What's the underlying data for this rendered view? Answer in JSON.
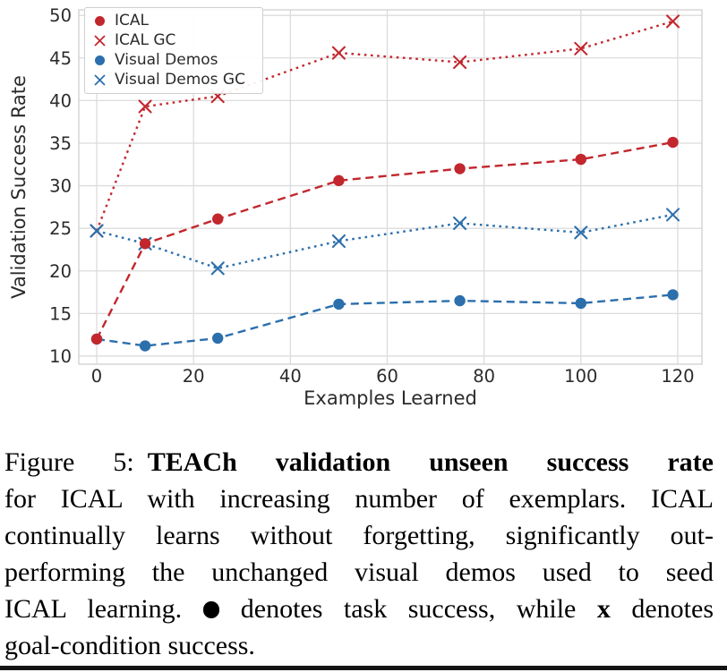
{
  "chart_data": {
    "type": "line",
    "title": "",
    "xlabel": "Examples Learned",
    "ylabel": "Validation Success Rate",
    "x_ticks": [
      0,
      20,
      40,
      60,
      80,
      100,
      120
    ],
    "y_ticks": [
      10,
      15,
      20,
      25,
      30,
      35,
      40,
      45,
      50
    ],
    "xlim": [
      -3.7,
      125
    ],
    "ylim": [
      9.05,
      50.65
    ],
    "grid": true,
    "legend_position": "upper left",
    "x": [
      0,
      10,
      25,
      50,
      75,
      100,
      119
    ],
    "series": [
      {
        "name": "ICAL",
        "color": "#c2272d",
        "marker": "circle",
        "linestyle": "dashed",
        "values": [
          12.0,
          23.2,
          26.1,
          30.6,
          32.0,
          33.1,
          35.1
        ]
      },
      {
        "name": "ICAL GC",
        "color": "#c2272d",
        "marker": "x",
        "linestyle": "dotted",
        "values": [
          24.7,
          39.3,
          40.5,
          45.6,
          44.5,
          46.1,
          49.3
        ]
      },
      {
        "name": "Visual Demos",
        "color": "#2b6fac",
        "marker": "circle",
        "linestyle": "dashed",
        "values": [
          12.0,
          11.2,
          12.1,
          16.1,
          16.5,
          16.2,
          17.2
        ]
      },
      {
        "name": "Visual Demos GC",
        "color": "#2b6fac",
        "marker": "x",
        "linestyle": "dotted",
        "values": [
          24.7,
          23.2,
          20.3,
          23.5,
          25.6,
          24.5,
          26.6
        ]
      }
    ],
    "style": {
      "grid_color": "#dcdcdc",
      "spine_color": "#d2d2d2",
      "tick_label_color": "#2b2b2b"
    }
  },
  "caption": {
    "lines": [
      [
        {
          "t": "Figure 5: ",
          "b": false
        },
        {
          "t": "TEACh validation unseen success rate",
          "b": true
        }
      ],
      [
        {
          "t": "for ICAL with increasing number of exemplars. ICAL",
          "b": false
        }
      ],
      [
        {
          "t": "continually learns without forgetting, significantly out-",
          "b": false
        }
      ],
      [
        {
          "t": "performing the unchanged visual demos used to seed",
          "b": false
        }
      ],
      [
        {
          "t": "ICAL learning. ",
          "b": false
        },
        {
          "glyph": "filled-circle"
        },
        {
          "t": " denotes task success, while ",
          "b": false
        },
        {
          "t": "x",
          "b": true
        },
        {
          "t": " denotes",
          "b": false
        }
      ],
      [
        {
          "t": "goal-condition success.",
          "b": false
        }
      ]
    ]
  }
}
